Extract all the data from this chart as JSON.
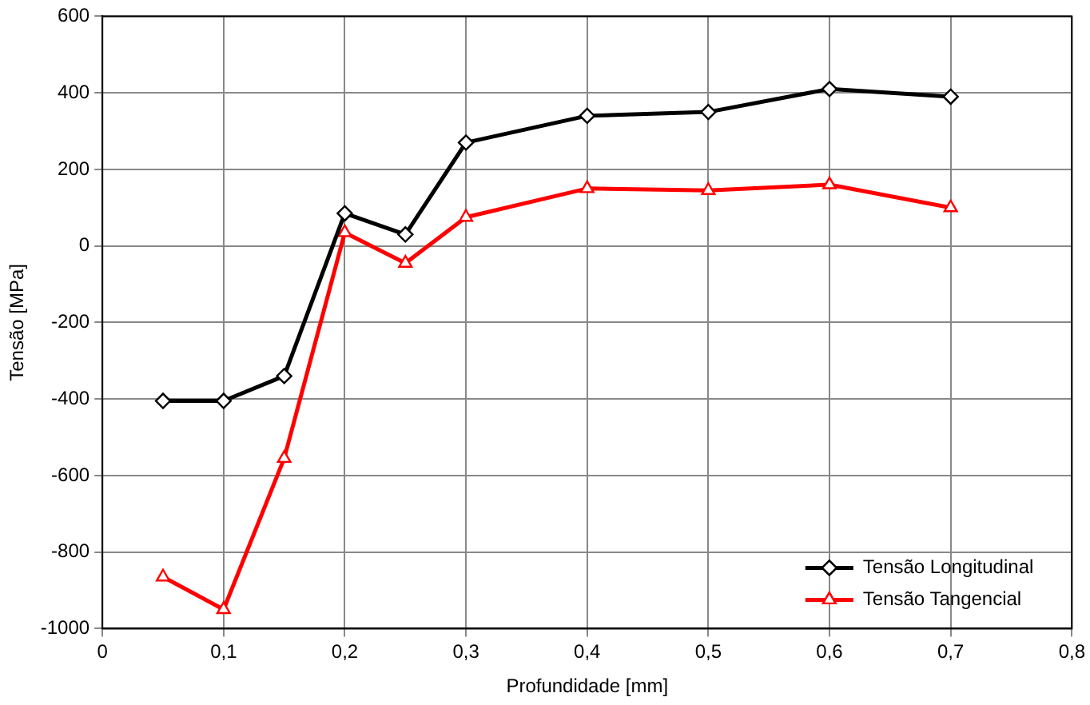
{
  "chart_data": {
    "type": "line",
    "xlabel": "Profundidade [mm]",
    "ylabel": "Tensão [MPa]",
    "x": [
      0.05,
      0.1,
      0.15,
      0.2,
      0.25,
      0.3,
      0.4,
      0.5,
      0.6,
      0.7
    ],
    "series": [
      {
        "name": "Tensão Longitudinal",
        "color": "#000000",
        "marker": "diamond",
        "values": [
          -405,
          -405,
          -340,
          85,
          30,
          270,
          340,
          350,
          410,
          390
        ]
      },
      {
        "name": "Tensão Tangencial",
        "color": "#ff0000",
        "marker": "triangle",
        "values": [
          -865,
          -950,
          -555,
          35,
          -45,
          75,
          150,
          145,
          160,
          100
        ]
      }
    ],
    "xlim": [
      0,
      0.8
    ],
    "xticks": [
      0,
      {
        "value": 0.1,
        "label": "0,1"
      },
      {
        "value": 0.2,
        "label": "0,2"
      },
      {
        "value": 0.3,
        "label": "0,3"
      },
      {
        "value": 0.4,
        "label": "0,4"
      },
      {
        "value": 0.5,
        "label": "0,5"
      },
      {
        "value": 0.6,
        "label": "0,6"
      },
      {
        "value": 0.7,
        "label": "0,7"
      },
      {
        "value": 0.8,
        "label": "0,8"
      }
    ],
    "ylim": [
      -1000,
      600
    ],
    "yticks": [
      -1000,
      -800,
      -600,
      -400,
      -200,
      0,
      200,
      400,
      600
    ],
    "grid": true,
    "legend": "bottom right",
    "line_style": "solid"
  }
}
